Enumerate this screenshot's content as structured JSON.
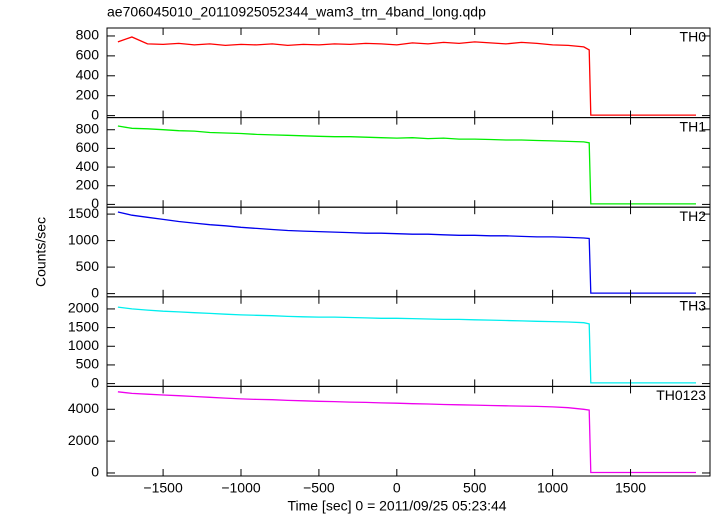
{
  "chart_data": {
    "type": "line",
    "title": "ae706045010_20110925052344_wam3_trn_4band_long.qdp",
    "x_label": "Time [sec] 0 = 2011/09/25 05:23:44",
    "y_label": "Counts/sec",
    "xlim": [
      -1860,
      2010
    ],
    "xticks": [
      {
        "value": -1500,
        "label": "−1500"
      },
      {
        "value": -1000,
        "label": "−1000"
      },
      {
        "value": -500,
        "label": "−500"
      },
      0,
      500,
      1000,
      1500
    ],
    "x": [
      -1790,
      -1700,
      -1600,
      -1500,
      -1400,
      -1300,
      -1200,
      -1100,
      -1000,
      -900,
      -800,
      -700,
      -600,
      -500,
      -400,
      -300,
      -200,
      -100,
      0,
      100,
      200,
      300,
      400,
      500,
      600,
      700,
      800,
      900,
      1000,
      1100,
      1200,
      1235,
      1245,
      1300,
      1400,
      1500,
      1600,
      1700,
      1800,
      1900,
      1920
    ],
    "series": [
      {
        "name": "TH0",
        "color": "#ff0000",
        "ylim": [
          -20,
          880
        ],
        "yticks": [
          0,
          200,
          400,
          600,
          800
        ],
        "values": [
          740,
          790,
          720,
          715,
          725,
          710,
          720,
          705,
          715,
          710,
          720,
          705,
          715,
          710,
          720,
          715,
          725,
          720,
          710,
          730,
          720,
          735,
          725,
          740,
          730,
          720,
          735,
          725,
          710,
          705,
          690,
          660,
          5,
          5,
          5,
          5,
          5,
          5,
          5,
          5,
          5
        ]
      },
      {
        "name": "TH1",
        "color": "#00ee00",
        "ylim": [
          -30,
          930
        ],
        "yticks": [
          0,
          200,
          400,
          600,
          800
        ],
        "values": [
          840,
          815,
          810,
          800,
          790,
          785,
          770,
          765,
          760,
          750,
          745,
          740,
          735,
          730,
          725,
          725,
          720,
          715,
          710,
          715,
          705,
          710,
          700,
          700,
          695,
          690,
          690,
          685,
          680,
          675,
          670,
          660,
          5,
          5,
          5,
          5,
          5,
          5,
          5,
          5,
          5
        ]
      },
      {
        "name": "TH2",
        "color": "#0000ee",
        "ylim": [
          -60,
          1630
        ],
        "yticks": [
          0,
          500,
          1000,
          1500
        ],
        "values": [
          1540,
          1480,
          1440,
          1400,
          1360,
          1330,
          1300,
          1280,
          1250,
          1230,
          1210,
          1190,
          1180,
          1170,
          1160,
          1150,
          1140,
          1140,
          1130,
          1120,
          1120,
          1110,
          1100,
          1100,
          1090,
          1090,
          1080,
          1070,
          1070,
          1060,
          1050,
          1040,
          10,
          10,
          10,
          10,
          10,
          10,
          10,
          10,
          10
        ]
      },
      {
        "name": "TH3",
        "color": "#00eeee",
        "ylim": [
          -75,
          2325
        ],
        "yticks": [
          0,
          500,
          1000,
          1500,
          2000
        ],
        "values": [
          2050,
          2000,
          1970,
          1940,
          1920,
          1900,
          1880,
          1860,
          1840,
          1830,
          1820,
          1800,
          1790,
          1780,
          1780,
          1770,
          1760,
          1750,
          1750,
          1740,
          1730,
          1720,
          1720,
          1710,
          1700,
          1690,
          1680,
          1670,
          1660,
          1650,
          1630,
          1600,
          20,
          20,
          20,
          20,
          20,
          20,
          20,
          20,
          20
        ]
      },
      {
        "name": "TH0123",
        "color": "#ee00ee",
        "ylim": [
          -190,
          5437
        ],
        "yticks": [
          0,
          2000,
          4000
        ],
        "values": [
          5100,
          5000,
          4950,
          4900,
          4850,
          4800,
          4750,
          4700,
          4650,
          4620,
          4600,
          4560,
          4530,
          4500,
          4480,
          4450,
          4430,
          4400,
          4380,
          4350,
          4330,
          4300,
          4280,
          4260,
          4240,
          4220,
          4200,
          4180,
          4150,
          4100,
          4000,
          3950,
          30,
          30,
          30,
          30,
          30,
          30,
          30,
          30,
          30
        ]
      }
    ]
  }
}
